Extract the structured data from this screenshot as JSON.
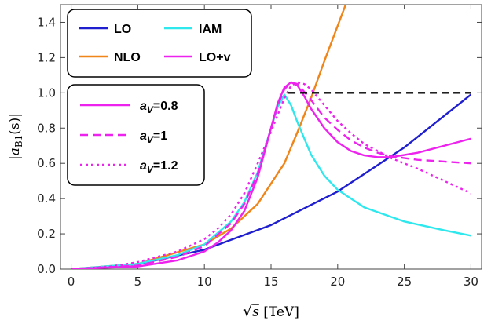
{
  "chart_data": {
    "type": "line",
    "xlabel": "√s [TeV]",
    "ylabel": "|a_B1(s)|",
    "xlim": [
      -0.8,
      30.8
    ],
    "ylim": [
      0,
      1.5
    ],
    "xticks": [
      0,
      5,
      10,
      15,
      20,
      25,
      30
    ],
    "yticks": [
      0.0,
      0.2,
      0.4,
      0.6,
      0.8,
      1.0,
      1.2,
      1.4
    ],
    "reference_line": {
      "y": 1.0,
      "x": [
        16.3,
        30
      ],
      "style": "dashed",
      "color": "#000000"
    },
    "series": [
      {
        "name": "LO",
        "color": "#1f1fcf",
        "style": "solid",
        "x": [
          0,
          5,
          10,
          15,
          20,
          25,
          30
        ],
        "y": [
          0,
          0.028,
          0.11,
          0.25,
          0.44,
          0.69,
          0.99
        ]
      },
      {
        "name": "NLO",
        "color": "#f0851a",
        "style": "solid",
        "x": [
          0,
          5,
          10,
          12,
          14,
          16,
          17,
          18,
          19,
          20,
          21
        ],
        "y": [
          0,
          0.03,
          0.14,
          0.23,
          0.37,
          0.6,
          0.78,
          0.97,
          1.18,
          1.38,
          1.58
        ]
      },
      {
        "name": "IAM",
        "color": "#2ee8ee",
        "style": "solid",
        "x": [
          0,
          5,
          8,
          10,
          12,
          13,
          14,
          15,
          15.5,
          16,
          16.5,
          17,
          18,
          19,
          20,
          22,
          25,
          28,
          30
        ],
        "y": [
          0,
          0.03,
          0.08,
          0.14,
          0.27,
          0.38,
          0.55,
          0.8,
          0.92,
          0.99,
          0.93,
          0.83,
          0.65,
          0.53,
          0.45,
          0.35,
          0.27,
          0.22,
          0.19
        ]
      },
      {
        "name": "LO+v",
        "color": "#ee22ee",
        "style": "solid",
        "x": [],
        "y": []
      }
    ],
    "unitarized_series": [
      {
        "name": "a_V=0.8",
        "color": "#ee22ee",
        "style": "solid",
        "x": [
          0,
          5,
          8,
          10,
          11,
          12,
          13,
          14,
          15,
          15.5,
          16,
          16.5,
          17,
          17.5,
          18,
          19,
          20,
          21,
          22,
          23,
          24,
          26,
          28,
          30
        ],
        "y": [
          0,
          0.015,
          0.05,
          0.1,
          0.15,
          0.22,
          0.33,
          0.52,
          0.8,
          0.94,
          1.03,
          1.06,
          1.04,
          0.98,
          0.91,
          0.8,
          0.72,
          0.67,
          0.645,
          0.635,
          0.635,
          0.66,
          0.7,
          0.74
        ]
      },
      {
        "name": "a_V=1",
        "color": "#ee22ee",
        "style": "dashed",
        "x": [
          0,
          5,
          8,
          10,
          12,
          13,
          14,
          15,
          15.5,
          16,
          16.5,
          17,
          18,
          19,
          20,
          21,
          22,
          23,
          24,
          26,
          28,
          30
        ],
        "y": [
          0,
          0.02,
          0.07,
          0.13,
          0.26,
          0.37,
          0.54,
          0.8,
          0.93,
          1.02,
          1.06,
          1.05,
          0.96,
          0.86,
          0.79,
          0.73,
          0.69,
          0.66,
          0.64,
          0.62,
          0.61,
          0.6
        ]
      },
      {
        "name": "a_V=1.2",
        "color": "#ee22ee",
        "style": "dotted",
        "x": [
          0,
          3,
          5,
          8,
          10,
          11,
          12,
          13,
          14,
          15,
          16,
          16.5,
          17,
          17.5,
          18,
          19,
          20,
          21,
          22,
          23,
          24,
          25,
          26,
          28,
          30
        ],
        "y": [
          0,
          0.015,
          0.04,
          0.1,
          0.17,
          0.23,
          0.31,
          0.43,
          0.6,
          0.78,
          0.97,
          1.04,
          1.06,
          1.05,
          1.02,
          0.93,
          0.84,
          0.77,
          0.71,
          0.67,
          0.63,
          0.6,
          0.57,
          0.5,
          0.43
        ]
      }
    ],
    "legend_top": {
      "position": "top-left",
      "entries": [
        {
          "label": "LO",
          "color": "#1f1fcf"
        },
        {
          "label": "IAM",
          "color": "#2ee8ee"
        },
        {
          "label": "NLO",
          "color": "#f0851a"
        },
        {
          "label": "LO+v",
          "color": "#ee22ee"
        }
      ]
    },
    "legend_params": {
      "position": "left",
      "entries": [
        {
          "prefix": "a",
          "sub": "V",
          "value": "=0.8",
          "style": "solid"
        },
        {
          "prefix": "a",
          "sub": "V",
          "value": "=1",
          "style": "dashed"
        },
        {
          "prefix": "a",
          "sub": "V",
          "value": "=1.2",
          "style": "dotted"
        }
      ]
    }
  }
}
